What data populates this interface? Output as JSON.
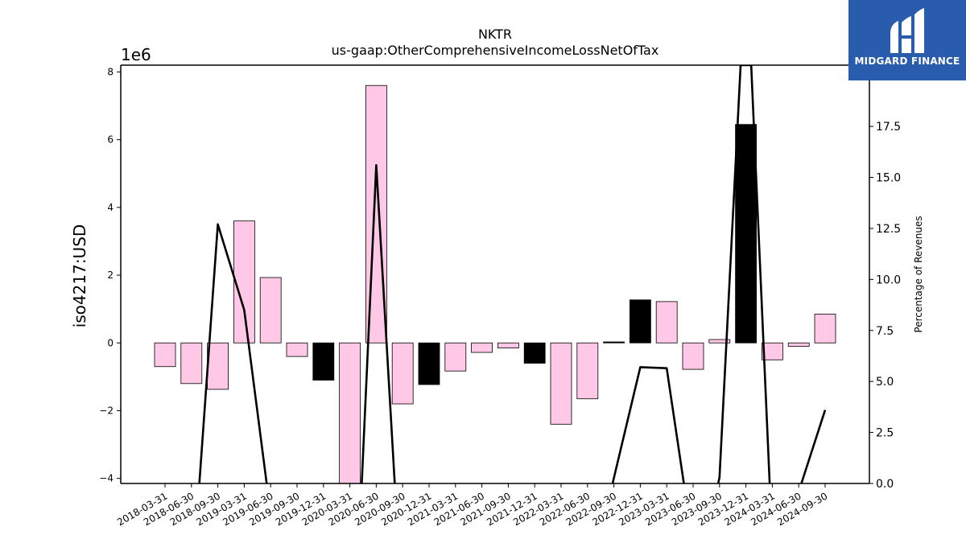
{
  "chart_data": {
    "type": "bar",
    "title": "NKTR",
    "subtitle": "us-gaap:OtherComprehensiveIncomeLossNetOfTax",
    "ylabel": "iso4217:USD",
    "y_offset_label": "1e6",
    "y2label": "Percentage of Revenues",
    "ylim": [
      -4.15,
      8.2
    ],
    "y2lim": [
      0,
      20.5
    ],
    "yticks": [
      -4,
      -2,
      0,
      2,
      4,
      6,
      8
    ],
    "y2ticks": [
      0,
      2.5,
      5,
      7.5,
      10,
      12.5,
      15,
      17.5
    ],
    "grid": false,
    "categories": [
      "2018-03-31",
      "2018-06-30",
      "2018-09-30",
      "2019-03-31",
      "2019-06-30",
      "2019-09-30",
      "2019-12-31",
      "2020-03-31",
      "2020-06-30",
      "2020-09-30",
      "2020-12-31",
      "2021-03-31",
      "2021-06-30",
      "2021-09-30",
      "2021-12-31",
      "2022-03-31",
      "2022-06-30",
      "2022-09-30",
      "2022-12-31",
      "2023-03-31",
      "2023-06-30",
      "2023-09-30",
      "2023-12-31",
      "2024-03-31",
      "2024-06-30",
      "2024-09-30"
    ],
    "series": [
      {
        "values": [
          -0.7,
          -1.2,
          -1.37,
          3.6,
          1.93,
          -0.4,
          -1.1,
          -4.15,
          7.6,
          -1.8,
          -1.23,
          -0.83,
          -0.28,
          -0.15,
          -0.6,
          -2.4,
          -1.65,
          0.03,
          1.27,
          1.22,
          -0.78,
          0.1,
          6.45,
          -0.5,
          -0.1,
          0.85
        ],
        "colors": [
          "#ffc8e6",
          "#ffc8e6",
          "#ffc8e6",
          "#ffc8e6",
          "#ffc8e6",
          "#ffc8e6",
          "#000000",
          "#ffc8e6",
          "#ffc8e6",
          "#ffc8e6",
          "#000000",
          "#ffc8e6",
          "#ffc8e6",
          "#ffc8e6",
          "#000000",
          "#ffc8e6",
          "#ffc8e6",
          "#000000",
          "#000000",
          "#ffc8e6",
          "#ffc8e6",
          "#ffc8e6",
          "#000000",
          "#ffc8e6",
          "#ffc8e6",
          "#ffc8e6"
        ]
      },
      {
        "type": "line",
        "axis": "right",
        "color": "#000000",
        "points": [
          [
            1.3,
            0
          ],
          [
            2,
            12.7
          ],
          [
            3,
            8.5
          ],
          [
            3.85,
            0
          ],
          [
            null,
            null
          ],
          [
            7.45,
            0
          ],
          [
            8,
            15.6
          ],
          [
            8.7,
            0
          ],
          [
            null,
            null
          ],
          [
            16.95,
            0
          ],
          [
            18,
            5.7
          ],
          [
            19,
            5.65
          ],
          [
            19.65,
            0
          ],
          [
            null,
            null
          ],
          [
            20.95,
            0
          ],
          [
            21,
            0.3
          ],
          [
            21.8,
            20.5
          ],
          [
            22.2,
            20.5
          ],
          [
            22.9,
            0
          ],
          [
            null,
            null
          ],
          [
            24.1,
            0
          ],
          [
            25,
            3.6
          ]
        ]
      }
    ]
  },
  "logo": {
    "text": "MIDGARD FINANCE",
    "color": "#2a5cad"
  }
}
